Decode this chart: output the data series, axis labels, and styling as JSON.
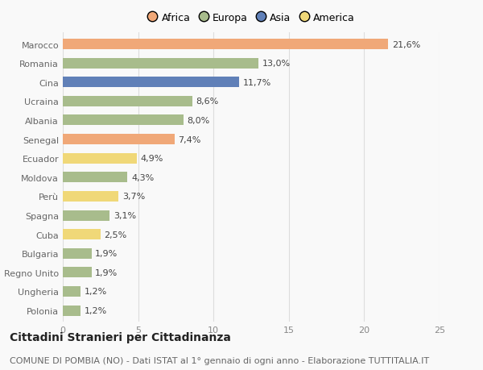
{
  "categories": [
    "Marocco",
    "Romania",
    "Cina",
    "Ucraina",
    "Albania",
    "Senegal",
    "Ecuador",
    "Moldova",
    "Perù",
    "Spagna",
    "Cuba",
    "Bulgaria",
    "Regno Unito",
    "Ungheria",
    "Polonia"
  ],
  "values": [
    21.6,
    13.0,
    11.7,
    8.6,
    8.0,
    7.4,
    4.9,
    4.3,
    3.7,
    3.1,
    2.5,
    1.9,
    1.9,
    1.2,
    1.2
  ],
  "labels": [
    "21,6%",
    "13,0%",
    "11,7%",
    "8,6%",
    "8,0%",
    "7,4%",
    "4,9%",
    "4,3%",
    "3,7%",
    "3,1%",
    "2,5%",
    "1,9%",
    "1,9%",
    "1,2%",
    "1,2%"
  ],
  "colors": [
    "#F0A878",
    "#A8BC8C",
    "#6080B8",
    "#A8BC8C",
    "#A8BC8C",
    "#F0A878",
    "#F0D878",
    "#A8BC8C",
    "#F0D878",
    "#A8BC8C",
    "#F0D878",
    "#A8BC8C",
    "#A8BC8C",
    "#A8BC8C",
    "#A8BC8C"
  ],
  "legend_labels": [
    "Africa",
    "Europa",
    "Asia",
    "America"
  ],
  "legend_colors": [
    "#F0A878",
    "#A8BC8C",
    "#6080B8",
    "#F0D878"
  ],
  "title": "Cittadini Stranieri per Cittadinanza",
  "subtitle": "COMUNE DI POMBIA (NO) - Dati ISTAT al 1° gennaio di ogni anno - Elaborazione TUTTITALIA.IT",
  "xlim": [
    0,
    25
  ],
  "xticks": [
    0,
    5,
    10,
    15,
    20,
    25
  ],
  "background_color": "#f9f9f9",
  "grid_color": "#dddddd",
  "bar_height": 0.55,
  "label_fontsize": 8,
  "title_fontsize": 10,
  "subtitle_fontsize": 8,
  "tick_fontsize": 8,
  "legend_fontsize": 9
}
